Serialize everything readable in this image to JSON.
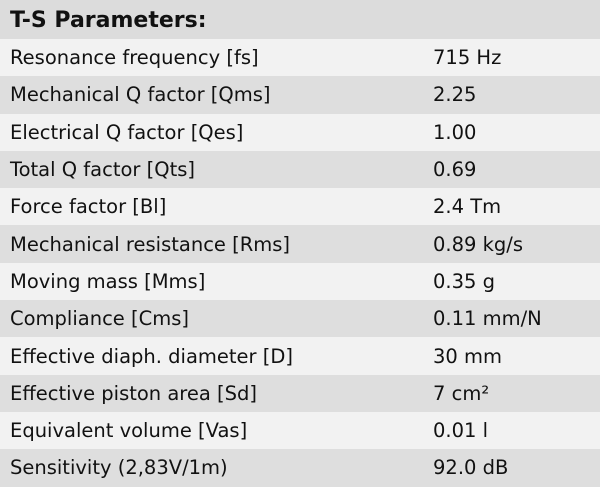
{
  "title": "T-S Parameters:",
  "rows": [
    {
      "label": "Resonance frequency [fs]",
      "value": "715 Hz"
    },
    {
      "label": "Mechanical Q factor [Qms]",
      "value": "2.25"
    },
    {
      "label": "Electrical Q factor [Qes]",
      "value": "1.00"
    },
    {
      "label": "Total Q factor [Qts]",
      "value": "0.69"
    },
    {
      "label": "Force factor [Bl]",
      "value": "2.4 Tm"
    },
    {
      "label": "Mechanical resistance [Rms]",
      "value": "0.89 kg/s"
    },
    {
      "label": "Moving mass [Mms]",
      "value": "0.35 g"
    },
    {
      "label": "Compliance [Cms]",
      "value": "0.11 mm/N"
    },
    {
      "label": "Effective diaph. diameter [D]",
      "value": "30 mm"
    },
    {
      "label": "Effective piston area [Sd]",
      "value": "7 cm²"
    },
    {
      "label": "Equivalent volume [Vas]",
      "value": "0.01 l"
    },
    {
      "label": "Sensitivity (2,83V/1m)",
      "value": "92.0 dB"
    }
  ]
}
